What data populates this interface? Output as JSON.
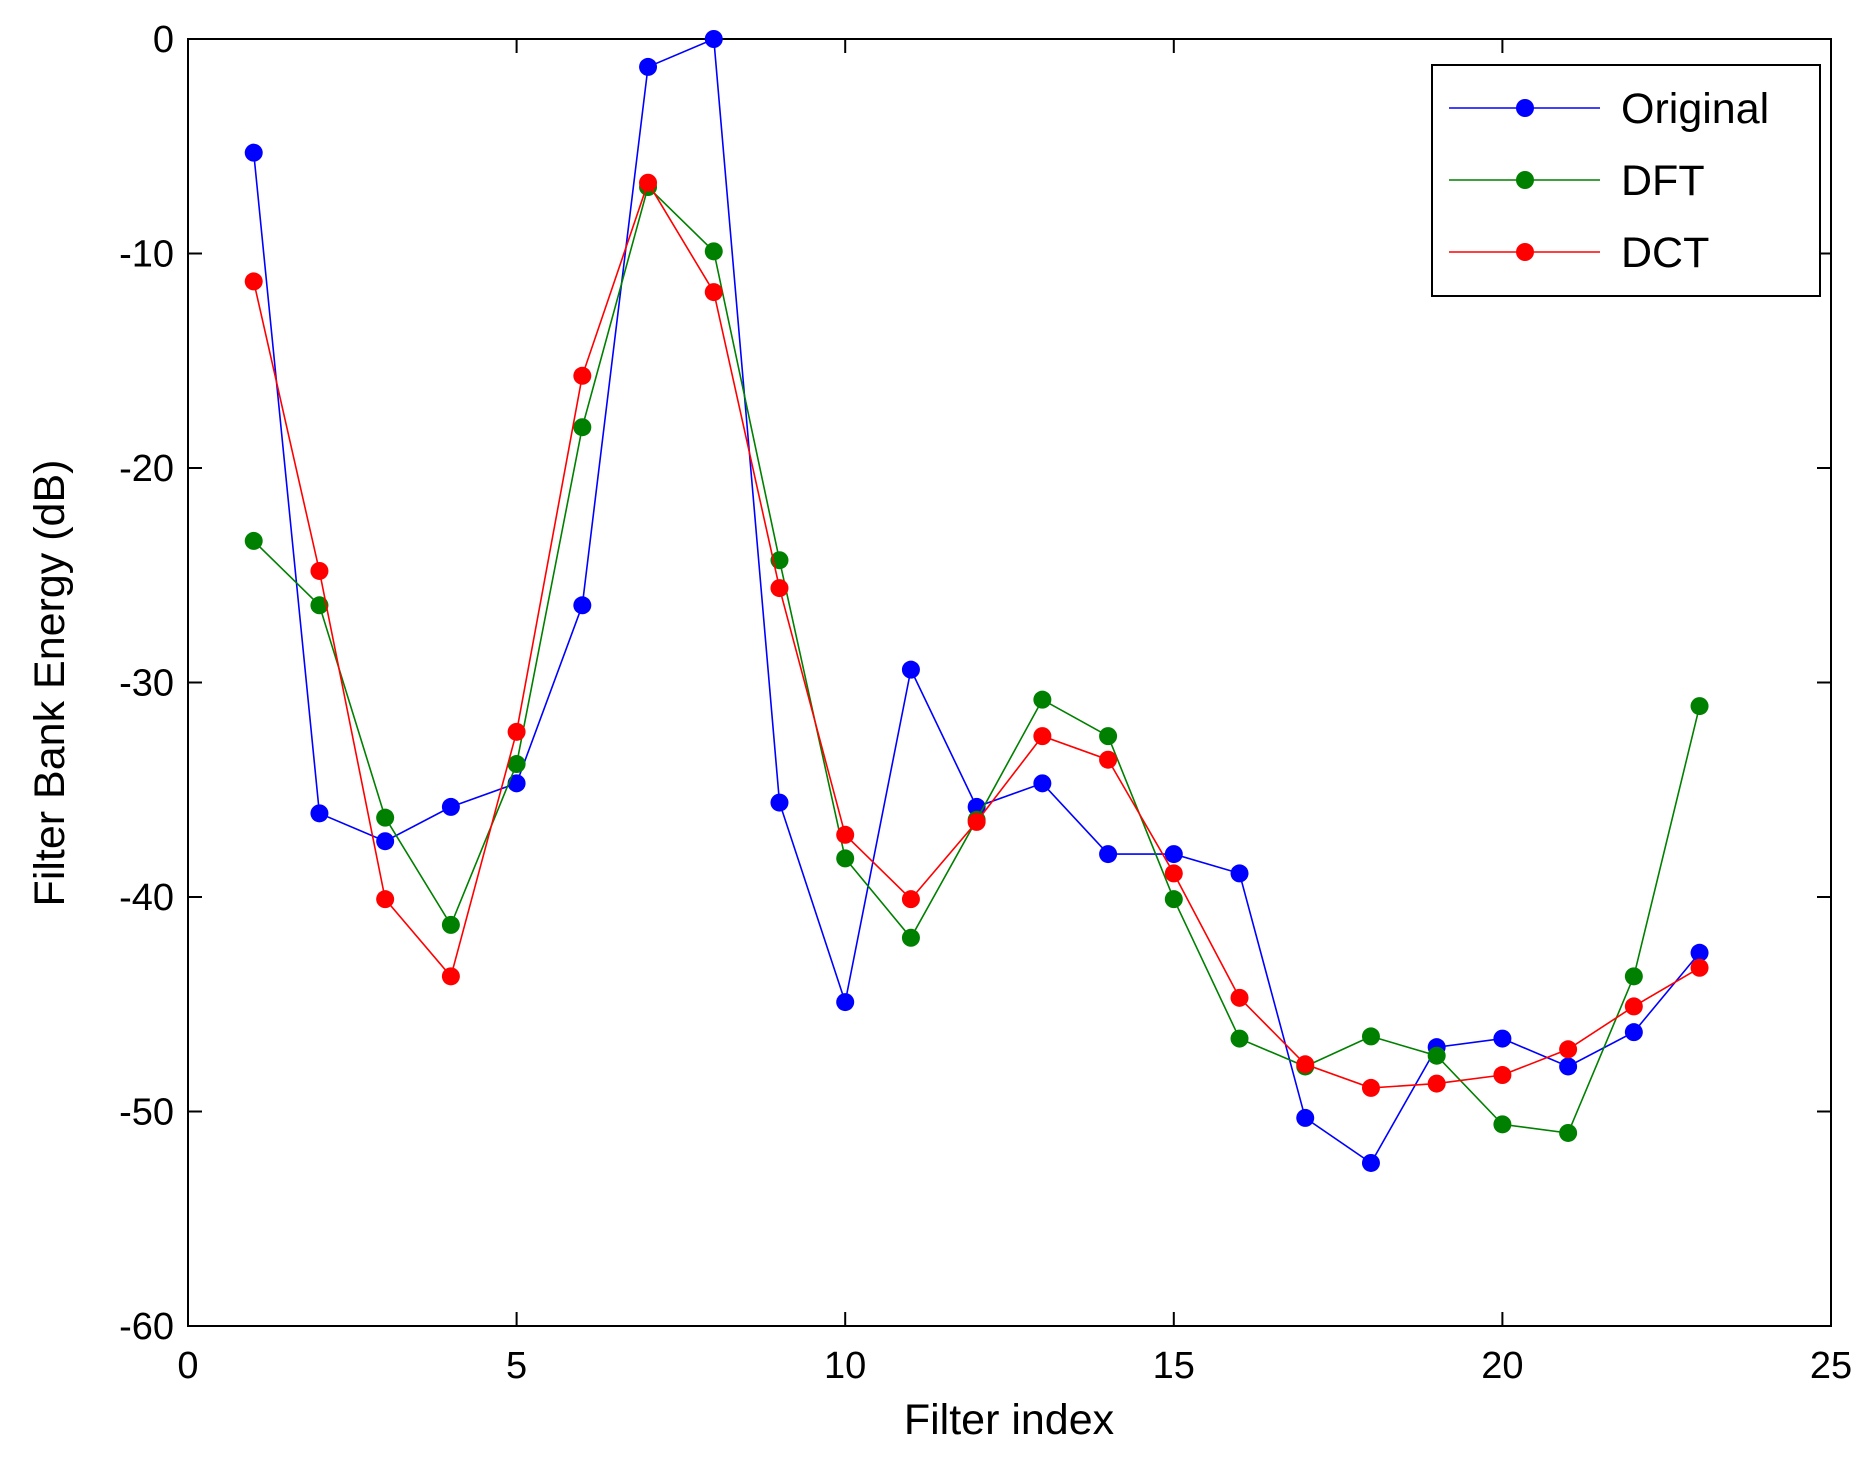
{
  "chart_data": {
    "type": "line",
    "title": "",
    "xlabel": "Filter index",
    "ylabel": "Filter Bank Energy (dB)",
    "xlim": [
      0,
      25
    ],
    "ylim": [
      -60,
      0
    ],
    "xticks": [
      0,
      5,
      10,
      15,
      20,
      25
    ],
    "yticks": [
      0,
      -10,
      -20,
      -30,
      -40,
      -50,
      -60
    ],
    "xtick_labels": [
      "0",
      "5",
      "10",
      "15",
      "20",
      "25"
    ],
    "ytick_labels": [
      "0",
      "-10",
      "-20",
      "-30",
      "-40",
      "-50",
      "-60"
    ],
    "grid": false,
    "legend_position": "top-right",
    "x": [
      1,
      2,
      3,
      4,
      5,
      6,
      7,
      8,
      9,
      10,
      11,
      12,
      13,
      14,
      15,
      16,
      17,
      18,
      19,
      20,
      21,
      22,
      23
    ],
    "series": [
      {
        "name": "Original",
        "color": "#0000ff",
        "values": [
          -5.3,
          -36.1,
          -37.4,
          -35.8,
          -34.7,
          -26.4,
          -1.3,
          0.0,
          -35.6,
          -44.9,
          -29.4,
          -35.8,
          -34.7,
          -38.0,
          -38.0,
          -38.9,
          -50.3,
          -52.4,
          -47.0,
          -46.6,
          -47.9,
          -46.3,
          -42.6
        ]
      },
      {
        "name": "DFT",
        "color": "#008000",
        "values": [
          -23.4,
          -26.4,
          -36.3,
          -41.3,
          -33.8,
          -18.1,
          -6.9,
          -9.9,
          -24.3,
          -38.2,
          -41.9,
          -36.4,
          -30.8,
          -32.5,
          -40.1,
          -46.6,
          -47.9,
          -46.5,
          -47.4,
          -50.6,
          -51.0,
          -43.7,
          -31.1
        ]
      },
      {
        "name": "DCT",
        "color": "#ff0000",
        "values": [
          -11.3,
          -24.8,
          -40.1,
          -43.7,
          -32.3,
          -15.7,
          -6.7,
          -11.8,
          -25.6,
          -37.1,
          -40.1,
          -36.5,
          -32.5,
          -33.6,
          -38.9,
          -44.7,
          -47.8,
          -48.9,
          -48.7,
          -48.3,
          -47.1,
          -45.1,
          -43.3
        ]
      }
    ]
  }
}
